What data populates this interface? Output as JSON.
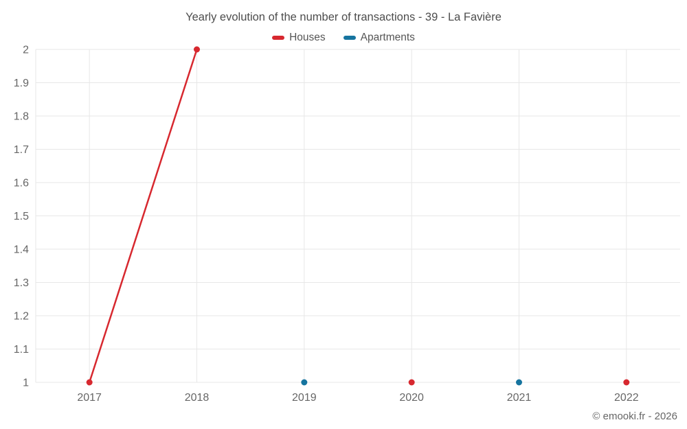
{
  "chart_data": {
    "type": "line",
    "title": "Yearly evolution of the number of transactions - 39 - La Favière",
    "categories": [
      "2017",
      "2018",
      "2019",
      "2020",
      "2021",
      "2022"
    ],
    "series": [
      {
        "name": "Houses",
        "color": "#d7282f",
        "values": [
          1,
          2,
          null,
          1,
          null,
          1
        ]
      },
      {
        "name": "Apartments",
        "color": "#16749f",
        "values": [
          null,
          null,
          1,
          null,
          1,
          null
        ]
      }
    ],
    "xlabel": "",
    "ylabel": "",
    "ylim": [
      1,
      2
    ],
    "yticks": [
      "1",
      "1.1",
      "1.2",
      "1.3",
      "1.4",
      "1.5",
      "1.6",
      "1.7",
      "1.8",
      "1.9",
      "2"
    ],
    "grid": true,
    "legend_position": "top",
    "marker": "circle",
    "source": "© emooki.fr - 2026"
  }
}
